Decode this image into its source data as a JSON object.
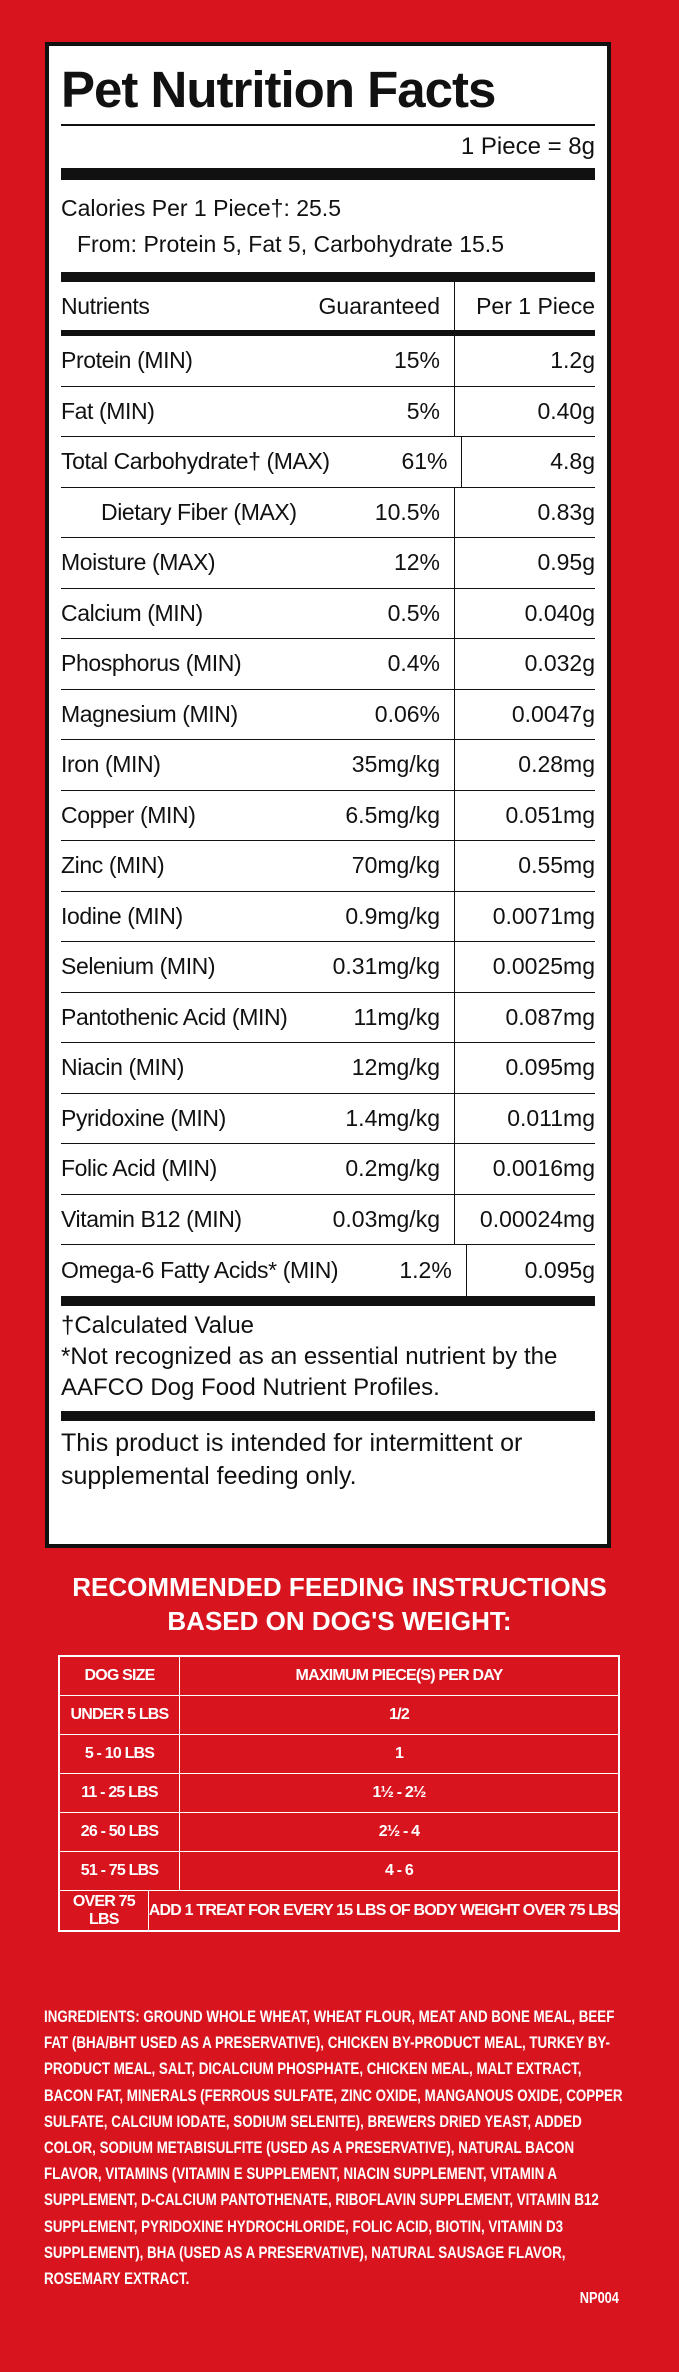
{
  "panel": {
    "title": "Pet Nutrition Facts",
    "serving": "1 Piece = 8g",
    "calories": "Calories Per 1 Piece†: 25.5",
    "from": "From: Protein 5, Fat 5, Carbohydrate 15.5",
    "headers": [
      "Nutrients",
      "Guaranteed",
      "Per 1 Piece"
    ],
    "rows": [
      [
        "Protein (MIN)",
        "15%",
        "1.2g"
      ],
      [
        "Fat (MIN)",
        "5%",
        "0.40g"
      ],
      [
        "Total Carbohydrate† (MAX)",
        "61%",
        "4.8g"
      ],
      [
        "Dietary Fiber (MAX)",
        "10.5%",
        "0.83g"
      ],
      [
        "Moisture (MAX)",
        "12%",
        "0.95g"
      ],
      [
        "Calcium (MIN)",
        "0.5%",
        "0.040g"
      ],
      [
        "Phosphorus (MIN)",
        "0.4%",
        "0.032g"
      ],
      [
        "Magnesium (MIN)",
        "0.06%",
        "0.0047g"
      ],
      [
        "Iron (MIN)",
        "35mg/kg",
        "0.28mg"
      ],
      [
        "Copper (MIN)",
        "6.5mg/kg",
        "0.051mg"
      ],
      [
        "Zinc (MIN)",
        "70mg/kg",
        "0.55mg"
      ],
      [
        "Iodine (MIN)",
        "0.9mg/kg",
        "0.0071mg"
      ],
      [
        "Selenium (MIN)",
        "0.31mg/kg",
        "0.0025mg"
      ],
      [
        "Pantothenic Acid (MIN)",
        "11mg/kg",
        "0.087mg"
      ],
      [
        "Niacin (MIN)",
        "12mg/kg",
        "0.095mg"
      ],
      [
        "Pyridoxine (MIN)",
        "1.4mg/kg",
        "0.011mg"
      ],
      [
        "Folic Acid (MIN)",
        "0.2mg/kg",
        "0.0016mg"
      ],
      [
        "Vitamin B12 (MIN)",
        "0.03mg/kg",
        "0.00024mg"
      ],
      [
        "Omega-6 Fatty Acids* (MIN)",
        "1.2%",
        "0.095g"
      ]
    ],
    "footnotes": [
      "†Calculated Value",
      "*Not recognized as an essential nutrient by the AAFCO Dog Food Nutrient Profiles."
    ],
    "note": "This product is intended for intermittent or supplemental feeding only."
  },
  "feeding": {
    "title": [
      "RECOMMENDED FEEDING INSTRUCTIONS",
      "BASED ON DOG'S WEIGHT:"
    ],
    "headers": [
      "DOG SIZE",
      "MAXIMUM PIECE(S) PER DAY"
    ],
    "rows": [
      [
        "UNDER 5 LBS",
        "1/2"
      ],
      [
        "5 - 10 LBS",
        "1"
      ],
      [
        "11 - 25 LBS",
        "1½ - 2½"
      ],
      [
        "26 - 50 LBS",
        "2½ - 4"
      ],
      [
        "51 - 75 LBS",
        "4 - 6"
      ],
      [
        "OVER 75 LBS",
        "ADD 1 TREAT FOR EVERY 15 LBS OF BODY WEIGHT OVER 75 LBS"
      ]
    ]
  },
  "ingredients": {
    "label": "INGREDIENTS:",
    "text": "GROUND WHOLE WHEAT, WHEAT FLOUR, MEAT AND BONE MEAL, BEEF FAT (BHA/BHT USED AS A PRESERVATIVE), CHICKEN BY-PRODUCT MEAL, TURKEY BY-PRODUCT MEAL, SALT, DICALCIUM PHOSPHATE, CHICKEN MEAL, MALT EXTRACT, BACON FAT, MINERALS (FERROUS SULFATE, ZINC OXIDE, MANGANOUS OXIDE, COPPER SULFATE, CALCIUM IODATE, SODIUM SELENITE), BREWERS DRIED YEAST, ADDED COLOR, SODIUM METABISULFITE (USED AS A PRESERVATIVE), NATURAL BACON FLAVOR, VITAMINS (VITAMIN E SUPPLEMENT, NIACIN SUPPLEMENT, VITAMIN A SUPPLEMENT, D-CALCIUM PANTOTHENATE, RIBOFLAVIN SUPPLEMENT, VITAMIN B12 SUPPLEMENT, PYRIDOXINE HYDROCHLORIDE, FOLIC ACID, BIOTIN, VITAMIN D3 SUPPLEMENT), BHA (USED AS A PRESERVATIVE), NATURAL SAUSAGE FLAVOR, ROSEMARY EXTRACT.",
    "code": "NP004"
  }
}
